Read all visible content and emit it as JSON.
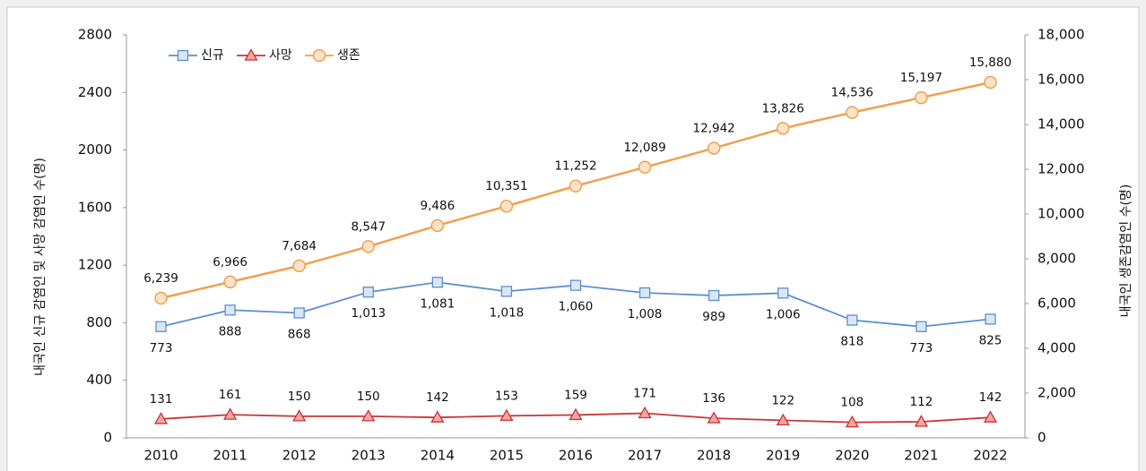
{
  "chart_data": {
    "type": "line",
    "categories": [
      "2010",
      "2011",
      "2012",
      "2013",
      "2014",
      "2015",
      "2016",
      "2017",
      "2018",
      "2019",
      "2020",
      "2021",
      "2022"
    ],
    "ylabel": "내국인 신규 감염인 및 사망 감염인 수(명)",
    "y2label": "내국인 생존감염인 수(명)",
    "ylim": [
      0,
      2800
    ],
    "yticks": [
      0,
      400,
      800,
      1200,
      1600,
      2000,
      2400,
      2800
    ],
    "y2lim": [
      0,
      18000
    ],
    "y2ticks": [
      0,
      {
        "value": 2000,
        "label": "2,000"
      },
      {
        "value": 4000,
        "label": "4,000"
      },
      {
        "value": 6000,
        "label": "6,000"
      },
      {
        "value": 8000,
        "label": "8,000"
      },
      {
        "value": 10000,
        "label": "10,000"
      },
      {
        "value": 12000,
        "label": "12,000"
      },
      {
        "value": 14000,
        "label": "14,000"
      },
      {
        "value": 16000,
        "label": "16,000"
      },
      {
        "value": 18000,
        "label": "18,000"
      }
    ],
    "legend": "upper left",
    "series": [
      {
        "name": "신규",
        "color": "#5b8fd0",
        "marker": "square",
        "values": [
          773,
          888,
          868,
          1013,
          1081,
          1018,
          1060,
          1008,
          989,
          1006,
          818,
          773,
          825
        ],
        "value_labels": [
          "773",
          "888",
          "868",
          "1,013",
          "1,081",
          "1,018",
          "1,060",
          "1,008",
          "989",
          "1,006",
          "818",
          "773",
          "825"
        ]
      },
      {
        "name": "사망",
        "color": "#cc3333",
        "marker": "triangle",
        "values": [
          131,
          161,
          150,
          150,
          142,
          153,
          159,
          171,
          136,
          122,
          108,
          112,
          142
        ],
        "value_labels": [
          "131",
          "161",
          "150",
          "150",
          "142",
          "153",
          "159",
          "171",
          "136",
          "122",
          "108",
          "112",
          "142"
        ]
      },
      {
        "name": "생존",
        "color": "#f0a050",
        "marker": "circle",
        "axis": "y2",
        "values": [
          6239,
          6966,
          7684,
          8547,
          9486,
          10351,
          11252,
          12089,
          12942,
          13826,
          14536,
          15197,
          15880
        ],
        "value_labels": [
          "6,239",
          "6,966",
          "7,684",
          "8,547",
          "9,486",
          "10,351",
          "11,252",
          "12,089",
          "12,942",
          "13,826",
          "14,536",
          "15,197",
          "15,880"
        ]
      }
    ]
  }
}
